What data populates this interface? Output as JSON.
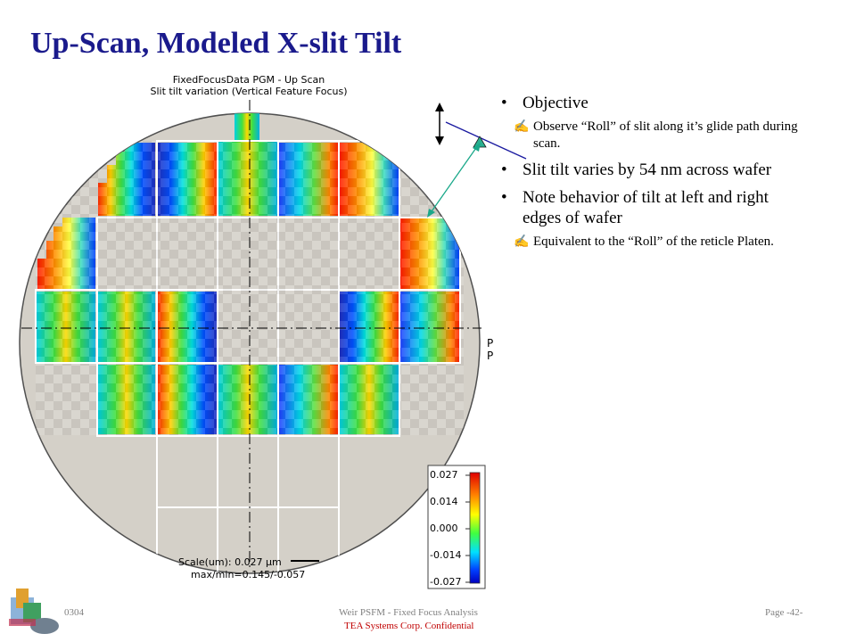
{
  "slide": {
    "title": "Up-Scan, Modeled X-slit Tilt"
  },
  "plot": {
    "caption_line1": "FixedFocusData PGM - Up Scan",
    "caption_line2": "Slit tilt variation (Vertical Feature Focus)",
    "pp_label_1": "P",
    "pp_label_2": "P",
    "scale_line1": "Scale(um): 0.027 µm",
    "scale_line2": "max/min=0.145/-0.057",
    "colorbar_labels": [
      "0.027",
      "0.014",
      "0.000",
      "-0.014",
      "-0.027"
    ],
    "colors": {
      "wafer_fill": "#d4d0c8",
      "grid_line": "#ffffff",
      "accent_teal": "#1aa88a"
    }
  },
  "bullets": [
    {
      "text": "Objective",
      "subs": [
        "Observe “Roll” of slit along it’s glide path during scan."
      ]
    },
    {
      "text": "Slit tilt varies by 54 nm across wafer",
      "subs": []
    },
    {
      "text": "Note behavior of tilt at left and right edges of wafer",
      "subs": [
        "Equivalent to the “Roll” of the reticle Platen."
      ]
    }
  ],
  "footer": {
    "left": "0304",
    "center": "Weir PSFM - Fixed Focus Analysis",
    "confidential": "TEA Systems Corp. Confidential",
    "page": "Page -42-"
  }
}
